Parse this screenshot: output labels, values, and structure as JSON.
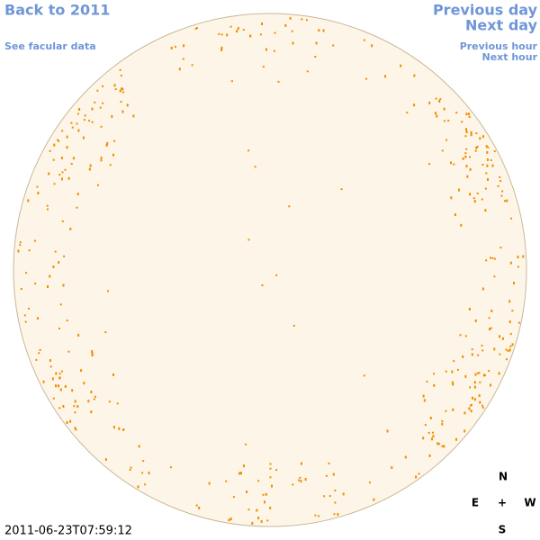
{
  "nav": {
    "back": "Back to 2011",
    "facular": "See facular data",
    "prev_day": "Previous day",
    "next_day": "Next day",
    "prev_hour": "Previous hour",
    "next_hour": "Next hour"
  },
  "compass": {
    "north": "N",
    "east": "E",
    "center": "+",
    "west": "W",
    "south": "S"
  },
  "timestamp": "2011-06-23T07:59:12"
}
